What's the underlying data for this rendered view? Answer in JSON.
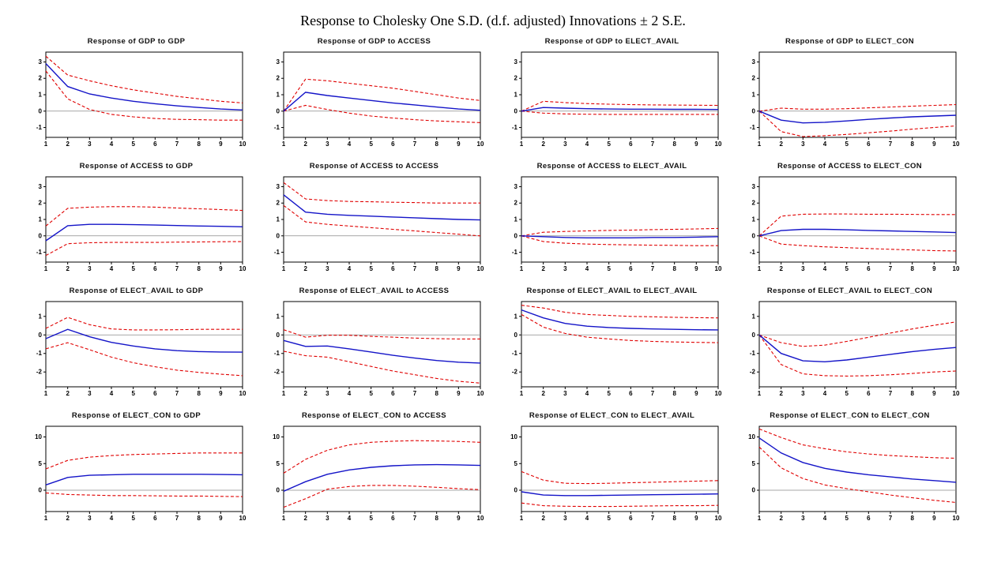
{
  "title": "Response to Cholesky One S.D. (d.f. adjusted) Innovations ± 2 S.E.",
  "colors": {
    "response": "#1414c8",
    "band": "#e00000",
    "zero_line": "#8a8a8a",
    "border": "#000000"
  },
  "chart_data": [
    {
      "type": "line",
      "title": "Response of GDP to GDP",
      "x": [
        1,
        2,
        3,
        4,
        5,
        6,
        7,
        8,
        9,
        10
      ],
      "ylim": [
        -1.6,
        3.6
      ],
      "yticks": [
        -1,
        0,
        1,
        2,
        3
      ],
      "response": [
        2.9,
        1.5,
        1.05,
        0.8,
        0.6,
        0.45,
        0.32,
        0.22,
        0.13,
        0.07
      ],
      "upper": [
        3.35,
        2.2,
        1.85,
        1.55,
        1.3,
        1.1,
        0.9,
        0.75,
        0.6,
        0.5
      ],
      "lower": [
        2.45,
        0.75,
        0.1,
        -0.2,
        -0.35,
        -0.45,
        -0.5,
        -0.52,
        -0.55,
        -0.55
      ]
    },
    {
      "type": "line",
      "title": "Response of GDP to ACCESS",
      "x": [
        1,
        2,
        3,
        4,
        5,
        6,
        7,
        8,
        9,
        10
      ],
      "ylim": [
        -1.6,
        3.6
      ],
      "yticks": [
        -1,
        0,
        1,
        2,
        3
      ],
      "response": [
        0,
        1.15,
        0.95,
        0.8,
        0.65,
        0.5,
        0.38,
        0.25,
        0.13,
        0.05
      ],
      "upper": [
        0,
        1.95,
        1.85,
        1.7,
        1.55,
        1.4,
        1.2,
        1.0,
        0.8,
        0.65
      ],
      "lower": [
        0,
        0.35,
        0.1,
        -0.12,
        -0.3,
        -0.42,
        -0.52,
        -0.6,
        -0.65,
        -0.7
      ]
    },
    {
      "type": "line",
      "title": "Response of GDP to ELECT_AVAIL",
      "x": [
        1,
        2,
        3,
        4,
        5,
        6,
        7,
        8,
        9,
        10
      ],
      "ylim": [
        -1.6,
        3.6
      ],
      "yticks": [
        -1,
        0,
        1,
        2,
        3
      ],
      "response": [
        0,
        0.22,
        0.18,
        0.15,
        0.13,
        0.12,
        0.12,
        0.11,
        0.11,
        0.1
      ],
      "upper": [
        0,
        0.6,
        0.52,
        0.46,
        0.42,
        0.4,
        0.38,
        0.37,
        0.36,
        0.35
      ],
      "lower": [
        0,
        -0.12,
        -0.17,
        -0.19,
        -0.2,
        -0.2,
        -0.2,
        -0.2,
        -0.2,
        -0.2
      ]
    },
    {
      "type": "line",
      "title": "Response of GDP to ELECT_CON",
      "x": [
        1,
        2,
        3,
        4,
        5,
        6,
        7,
        8,
        9,
        10
      ],
      "ylim": [
        -1.6,
        3.6
      ],
      "yticks": [
        -1,
        0,
        1,
        2,
        3
      ],
      "response": [
        0,
        -0.55,
        -0.72,
        -0.68,
        -0.6,
        -0.5,
        -0.42,
        -0.35,
        -0.3,
        -0.25
      ],
      "upper": [
        0,
        0.18,
        0.12,
        0.12,
        0.15,
        0.2,
        0.25,
        0.3,
        0.35,
        0.4
      ],
      "lower": [
        0,
        -1.25,
        -1.55,
        -1.5,
        -1.42,
        -1.32,
        -1.22,
        -1.1,
        -1.0,
        -0.9
      ]
    },
    {
      "type": "line",
      "title": "Response of ACCESS to GDP",
      "x": [
        1,
        2,
        3,
        4,
        5,
        6,
        7,
        8,
        9,
        10
      ],
      "ylim": [
        -1.6,
        3.6
      ],
      "yticks": [
        -1,
        0,
        1,
        2,
        3
      ],
      "response": [
        -0.3,
        0.62,
        0.7,
        0.7,
        0.68,
        0.66,
        0.63,
        0.6,
        0.58,
        0.55
      ],
      "upper": [
        0.6,
        1.68,
        1.75,
        1.78,
        1.78,
        1.75,
        1.7,
        1.65,
        1.6,
        1.55
      ],
      "lower": [
        -1.2,
        -0.48,
        -0.42,
        -0.4,
        -0.4,
        -0.4,
        -0.38,
        -0.37,
        -0.36,
        -0.35
      ]
    },
    {
      "type": "line",
      "title": "Response of ACCESS to ACCESS",
      "x": [
        1,
        2,
        3,
        4,
        5,
        6,
        7,
        8,
        9,
        10
      ],
      "ylim": [
        -1.6,
        3.6
      ],
      "yticks": [
        -1,
        0,
        1,
        2,
        3
      ],
      "response": [
        2.5,
        1.45,
        1.32,
        1.25,
        1.2,
        1.15,
        1.1,
        1.05,
        1.0,
        0.97
      ],
      "upper": [
        3.25,
        2.25,
        2.15,
        2.1,
        2.08,
        2.05,
        2.03,
        2.0,
        2.0,
        2.0
      ],
      "lower": [
        1.85,
        0.85,
        0.7,
        0.6,
        0.5,
        0.4,
        0.3,
        0.2,
        0.1,
        0.0
      ]
    },
    {
      "type": "line",
      "title": "Response of ACCESS to ELECT_AVAIL",
      "x": [
        1,
        2,
        3,
        4,
        5,
        6,
        7,
        8,
        9,
        10
      ],
      "ylim": [
        -1.6,
        3.6
      ],
      "yticks": [
        -1,
        0,
        1,
        2,
        3
      ],
      "response": [
        0,
        -0.05,
        -0.1,
        -0.12,
        -0.12,
        -0.12,
        -0.1,
        -0.1,
        -0.08,
        -0.05
      ],
      "upper": [
        0,
        0.22,
        0.27,
        0.3,
        0.33,
        0.35,
        0.38,
        0.4,
        0.42,
        0.45
      ],
      "lower": [
        0,
        -0.35,
        -0.45,
        -0.5,
        -0.53,
        -0.55,
        -0.57,
        -0.58,
        -0.6,
        -0.6
      ]
    },
    {
      "type": "line",
      "title": "Response of ACCESS to ELECT_CON",
      "x": [
        1,
        2,
        3,
        4,
        5,
        6,
        7,
        8,
        9,
        10
      ],
      "ylim": [
        -1.6,
        3.6
      ],
      "yticks": [
        -1,
        0,
        1,
        2,
        3
      ],
      "response": [
        0,
        0.32,
        0.4,
        0.4,
        0.37,
        0.33,
        0.3,
        0.27,
        0.24,
        0.2
      ],
      "upper": [
        0,
        1.2,
        1.32,
        1.33,
        1.33,
        1.32,
        1.32,
        1.31,
        1.3,
        1.3
      ],
      "lower": [
        0,
        -0.5,
        -0.6,
        -0.67,
        -0.72,
        -0.77,
        -0.82,
        -0.86,
        -0.9,
        -0.92
      ]
    },
    {
      "type": "line",
      "title": "Response of ELECT_AVAIL to GDP",
      "x": [
        1,
        2,
        3,
        4,
        5,
        6,
        7,
        8,
        9,
        10
      ],
      "ylim": [
        -2.8,
        1.8
      ],
      "yticks": [
        -2,
        -1,
        0,
        1
      ],
      "response": [
        -0.2,
        0.3,
        -0.1,
        -0.4,
        -0.6,
        -0.75,
        -0.85,
        -0.9,
        -0.92,
        -0.93
      ],
      "upper": [
        0.35,
        0.95,
        0.55,
        0.32,
        0.27,
        0.27,
        0.28,
        0.3,
        0.3,
        0.3
      ],
      "lower": [
        -0.75,
        -0.42,
        -0.8,
        -1.2,
        -1.5,
        -1.72,
        -1.9,
        -2.02,
        -2.12,
        -2.2
      ]
    },
    {
      "type": "line",
      "title": "Response of ELECT_AVAIL to ACCESS",
      "x": [
        1,
        2,
        3,
        4,
        5,
        6,
        7,
        8,
        9,
        10
      ],
      "ylim": [
        -2.8,
        1.8
      ],
      "yticks": [
        -2,
        -1,
        0,
        1
      ],
      "response": [
        -0.3,
        -0.62,
        -0.6,
        -0.75,
        -0.92,
        -1.1,
        -1.25,
        -1.38,
        -1.47,
        -1.52
      ],
      "upper": [
        0.28,
        -0.12,
        -0.02,
        -0.02,
        -0.08,
        -0.12,
        -0.17,
        -0.2,
        -0.22,
        -0.22
      ],
      "lower": [
        -0.88,
        -1.12,
        -1.2,
        -1.45,
        -1.7,
        -1.95,
        -2.15,
        -2.35,
        -2.5,
        -2.6
      ]
    },
    {
      "type": "line",
      "title": "Response of ELECT_AVAIL to ELECT_AVAIL",
      "x": [
        1,
        2,
        3,
        4,
        5,
        6,
        7,
        8,
        9,
        10
      ],
      "ylim": [
        -2.8,
        1.8
      ],
      "yticks": [
        -2,
        -1,
        0,
        1
      ],
      "response": [
        1.35,
        0.92,
        0.62,
        0.47,
        0.4,
        0.35,
        0.32,
        0.3,
        0.28,
        0.27
      ],
      "upper": [
        1.6,
        1.45,
        1.22,
        1.1,
        1.05,
        1.0,
        0.98,
        0.95,
        0.93,
        0.92
      ],
      "lower": [
        1.1,
        0.42,
        0.08,
        -0.12,
        -0.22,
        -0.3,
        -0.35,
        -0.38,
        -0.4,
        -0.42
      ]
    },
    {
      "type": "line",
      "title": "Response of ELECT_AVAIL to ELECT_CON",
      "x": [
        1,
        2,
        3,
        4,
        5,
        6,
        7,
        8,
        9,
        10
      ],
      "ylim": [
        -2.8,
        1.8
      ],
      "yticks": [
        -2,
        -1,
        0,
        1
      ],
      "response": [
        0,
        -1.0,
        -1.4,
        -1.45,
        -1.35,
        -1.2,
        -1.05,
        -0.9,
        -0.78,
        -0.68
      ],
      "upper": [
        0,
        -0.42,
        -0.62,
        -0.55,
        -0.35,
        -0.13,
        0.1,
        0.32,
        0.52,
        0.7
      ],
      "lower": [
        0,
        -1.6,
        -2.1,
        -2.2,
        -2.22,
        -2.2,
        -2.15,
        -2.08,
        -2.0,
        -1.95
      ]
    },
    {
      "type": "line",
      "title": "Response of ELECT_CON to GDP",
      "x": [
        1,
        2,
        3,
        4,
        5,
        6,
        7,
        8,
        9,
        10
      ],
      "ylim": [
        -4,
        12
      ],
      "yticks": [
        0,
        5,
        10
      ],
      "response": [
        1.0,
        2.4,
        2.8,
        2.9,
        3.0,
        3.0,
        3.0,
        3.0,
        2.95,
        2.9
      ],
      "upper": [
        4.0,
        5.6,
        6.2,
        6.5,
        6.7,
        6.8,
        6.9,
        7.0,
        7.0,
        7.0
      ],
      "lower": [
        -0.5,
        -0.8,
        -0.9,
        -1.0,
        -1.0,
        -1.05,
        -1.1,
        -1.1,
        -1.15,
        -1.2
      ]
    },
    {
      "type": "line",
      "title": "Response of ELECT_CON to ACCESS",
      "x": [
        1,
        2,
        3,
        4,
        5,
        6,
        7,
        8,
        9,
        10
      ],
      "ylim": [
        -4,
        12
      ],
      "yticks": [
        0,
        5,
        10
      ],
      "response": [
        -0.2,
        1.6,
        3.0,
        3.8,
        4.3,
        4.6,
        4.75,
        4.8,
        4.75,
        4.65
      ],
      "upper": [
        3.2,
        5.8,
        7.5,
        8.5,
        9.0,
        9.2,
        9.3,
        9.25,
        9.15,
        9.0
      ],
      "lower": [
        -3.2,
        -1.6,
        0.2,
        0.7,
        0.9,
        0.9,
        0.75,
        0.55,
        0.3,
        0.1
      ]
    },
    {
      "type": "line",
      "title": "Response of ELECT_CON to ELECT_AVAIL",
      "x": [
        1,
        2,
        3,
        4,
        5,
        6,
        7,
        8,
        9,
        10
      ],
      "ylim": [
        -4,
        12
      ],
      "yticks": [
        0,
        5,
        10
      ],
      "response": [
        -0.3,
        -0.9,
        -1.0,
        -1.0,
        -0.95,
        -0.9,
        -0.85,
        -0.8,
        -0.75,
        -0.7
      ],
      "upper": [
        3.5,
        1.9,
        1.3,
        1.25,
        1.3,
        1.4,
        1.5,
        1.6,
        1.7,
        1.8
      ],
      "lower": [
        -2.4,
        -2.9,
        -3.0,
        -3.05,
        -3.05,
        -3.0,
        -2.95,
        -2.9,
        -2.9,
        -2.85
      ]
    },
    {
      "type": "line",
      "title": "Response of ELECT_CON to ELECT_CON",
      "x": [
        1,
        2,
        3,
        4,
        5,
        6,
        7,
        8,
        9,
        10
      ],
      "ylim": [
        -4,
        12
      ],
      "yticks": [
        0,
        5,
        10
      ],
      "response": [
        9.8,
        7.0,
        5.2,
        4.1,
        3.4,
        2.9,
        2.5,
        2.1,
        1.8,
        1.5
      ],
      "upper": [
        11.5,
        9.9,
        8.5,
        7.8,
        7.2,
        6.8,
        6.5,
        6.3,
        6.1,
        6.0
      ],
      "lower": [
        8.1,
        4.2,
        2.2,
        1.0,
        0.3,
        -0.3,
        -0.9,
        -1.4,
        -1.9,
        -2.3
      ]
    }
  ]
}
